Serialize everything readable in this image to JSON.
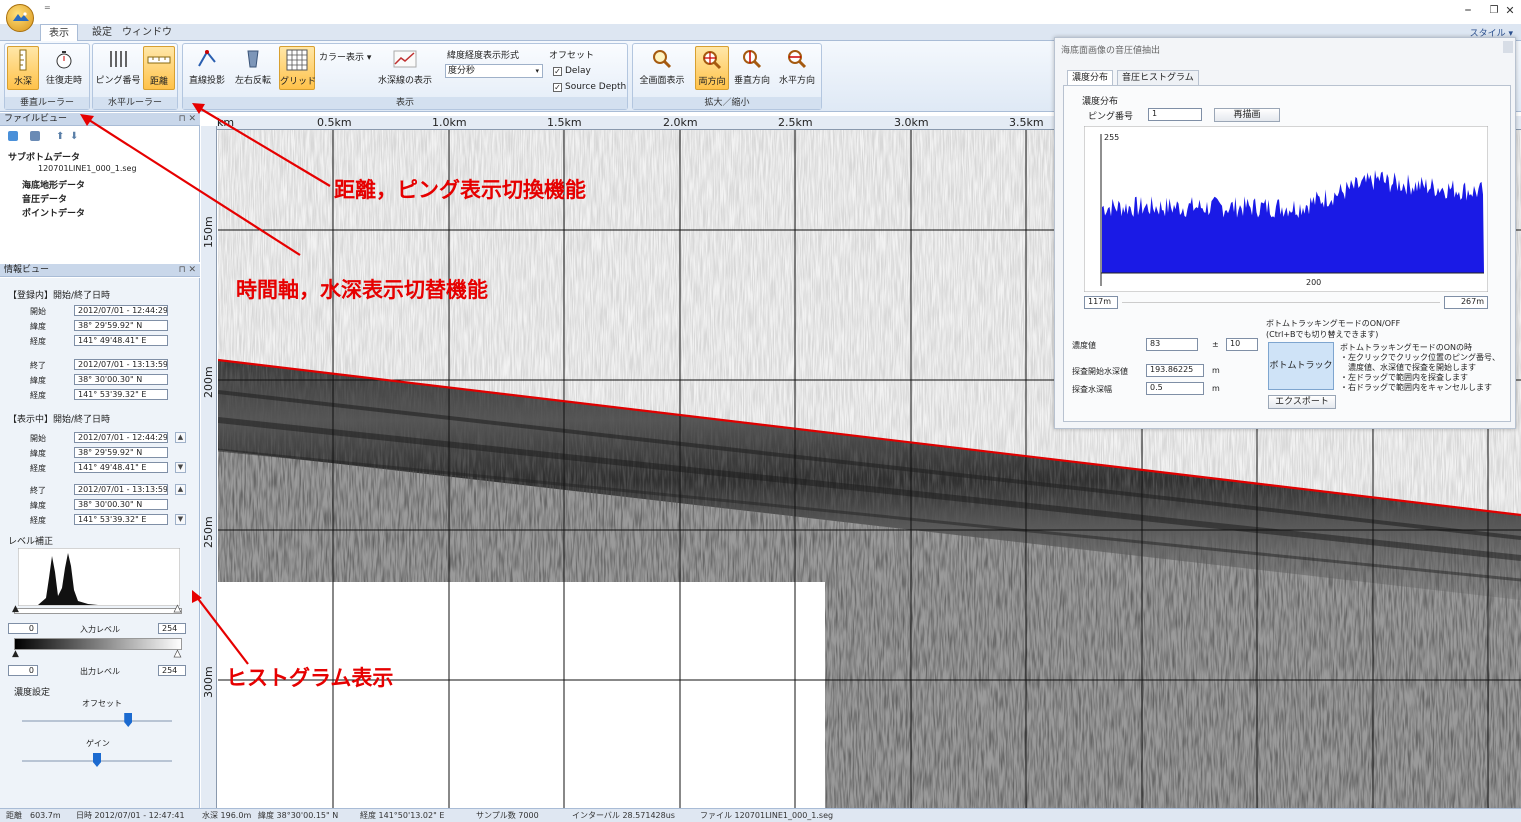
{
  "window": {
    "qat_mark": "=",
    "minimize": "–",
    "restore": "❐",
    "close": "✕"
  },
  "tabs": [
    "表示",
    "設定",
    "ウィンドウ"
  ],
  "style_menu": "スタイル ▾",
  "ribbon": {
    "vertical_ruler": {
      "label": "垂直ルーラー",
      "buttons": [
        "水深",
        "往復走時"
      ]
    },
    "horizontal_ruler": {
      "label": "水平ルーラー",
      "buttons": [
        "ピング番号",
        "距離"
      ]
    },
    "display": {
      "label": "表示",
      "buttons": [
        "直線投影",
        "左右反転",
        "グリッド"
      ],
      "color_display": "カラー表示 ▾",
      "water_line": "水深線の表示",
      "latlon_title": "緯度経度表示形式",
      "latlon_value": "度分秒",
      "offset_title": "オフセット",
      "offset_delay": "Delay",
      "offset_source": "Source Depth",
      "check": "✓"
    },
    "zoom": {
      "label": "拡大／縮小",
      "buttons": [
        "全画面表示",
        "両方向",
        "垂直方向",
        "水平方向"
      ]
    }
  },
  "fileview": {
    "title": "ファイルビュー",
    "pin": "⊓ ✕",
    "tree": [
      "サブボトムデータ",
      "120701LINE1_000_1.seg",
      "海底地形データ",
      "音圧データ",
      "ポイントデータ"
    ]
  },
  "infoview": {
    "title": "情報ビュー",
    "registered_title": "【登録内】開始/終了日時",
    "displayed_title": "【表示中】開始/終了日時",
    "labels": {
      "start": "開始",
      "end": "終了",
      "lat": "緯度",
      "lon": "経度"
    },
    "registered": {
      "start_time": "2012/07/01 - 12:44:29",
      "start_lat": "38° 29'59.92\" N",
      "start_lon": "141° 49'48.41\" E",
      "end_time": "2012/07/01 - 13:13:59",
      "end_lat": "38° 30'00.30\" N",
      "end_lon": "141° 53'39.32\" E"
    },
    "displayed": {
      "start_time": "2012/07/01 - 12:44:29",
      "start_lat": "38° 29'59.92\" N",
      "start_lon": "141° 49'48.41\" E",
      "end_time": "2012/07/01 - 13:13:59",
      "end_lat": "38° 30'00.30\" N",
      "end_lon": "141° 53'39.32\" E"
    },
    "level_title": "レベル補正",
    "input_level_label": "入力レベル",
    "output_level_label": "出力レベル",
    "input_min": "0",
    "input_max": "254",
    "output_min": "0",
    "output_max": "254",
    "density_title": "濃度設定",
    "offset_label": "オフセット",
    "gain_label": "ゲイン",
    "offset_value": 0.72,
    "gain_value": 0.5
  },
  "sonar": {
    "x_ticks": [
      "km",
      "0.5km",
      "1.0km",
      "1.5km",
      "2.0km",
      "2.5km",
      "3.0km",
      "3.5km"
    ],
    "y_ticks": [
      "150m",
      "200m",
      "250m",
      "300m"
    ],
    "bottom_color": "#e00000"
  },
  "dialog": {
    "title": "海底面画像の音圧値抽出",
    "tabs": [
      "濃度分布",
      "音圧ヒストグラム"
    ],
    "group_label": "濃度分布",
    "ping_label": "ピング番号",
    "ping_value": "1",
    "redraw": "再描画",
    "hist_top": "255",
    "hist_x_label": "200",
    "range_min": "117m",
    "range_max": "267m",
    "density_label": "濃度値",
    "density_value": "83",
    "plusminus": "±",
    "tolerance": "10",
    "start_depth_label": "探査開始水深値",
    "start_depth_value": "193.86225",
    "depth_width_label": "探査水深幅",
    "depth_width_value": "0.5",
    "unit_m": "m",
    "mode_title": "ボトムトラッキングモードのON/OFF",
    "mode_sub": "(Ctrl+Bでも切り替えできます)",
    "bottom_track": "ボトムトラック",
    "export": "エクスポート",
    "help_lines": [
      "ボトムトラッキングモードのONの時",
      "・左クリックでクリック位置のピング番号、",
      "　濃度値、水深値で探査を開始します",
      "・左ドラッグで範囲内を探査します",
      "・右ドラッグで範囲内をキャンセルします"
    ],
    "hist_color": "#1a1ae6"
  },
  "status": {
    "distance": "距離　603.7m",
    "time": "日時 2012/07/01 - 12:47:41",
    "depth": "水深 196.0m",
    "lat": "緯度 38°30'00.15\" N",
    "lon": "経度 141°50'13.02\" E",
    "samples": "サンプル数 7000",
    "interval": "インターバル 28.571428us",
    "file": "ファイル 120701LINE1_000_1.seg"
  },
  "annotations": {
    "distance_ping": "距離，ピング表示切換機能",
    "time_depth": "時間軸，水深表示切替機能",
    "histogram": "ヒストグラム表示",
    "color": "#e60000"
  }
}
